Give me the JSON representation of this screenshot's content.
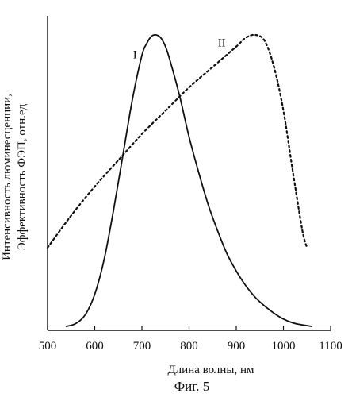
{
  "chart_data": {
    "type": "line",
    "xlabel": "Длина волны, нм",
    "ylabel_line1": "Интенсивность люминесценции,",
    "ylabel_line2": "Эффективность ФЭП, отн.ед",
    "caption": "Фиг. 5",
    "xlim": [
      500,
      1100
    ],
    "ylim": [
      0,
      1
    ],
    "x_ticks": [
      500,
      600,
      700,
      800,
      900,
      1000,
      1100
    ],
    "grid": false,
    "series": [
      {
        "name": "I",
        "style": "solid",
        "color": "#111111",
        "x": [
          540,
          560,
          580,
          600,
          620,
          640,
          660,
          680,
          700,
          710,
          720,
          730,
          740,
          750,
          760,
          780,
          800,
          820,
          840,
          860,
          880,
          900,
          920,
          940,
          960,
          980,
          1000,
          1020,
          1040,
          1060
        ],
        "y": [
          0.0,
          0.01,
          0.04,
          0.11,
          0.23,
          0.4,
          0.59,
          0.78,
          0.93,
          0.97,
          0.995,
          1.0,
          0.99,
          0.96,
          0.91,
          0.79,
          0.65,
          0.53,
          0.42,
          0.33,
          0.25,
          0.19,
          0.14,
          0.1,
          0.07,
          0.045,
          0.025,
          0.012,
          0.005,
          0.0
        ]
      },
      {
        "name": "II",
        "style": "dotted",
        "color": "#111111",
        "x": [
          500,
          550,
          600,
          650,
          700,
          750,
          800,
          850,
          900,
          920,
          940,
          960,
          980,
          1000,
          1020,
          1040,
          1050
        ],
        "y": [
          0.27,
          0.38,
          0.48,
          0.57,
          0.66,
          0.74,
          0.82,
          0.89,
          0.96,
          0.99,
          1.0,
          0.98,
          0.89,
          0.74,
          0.53,
          0.33,
          0.27
        ]
      }
    ],
    "annotations": [
      {
        "text": "I",
        "x": 697,
        "y": 0.92
      },
      {
        "text": "II",
        "x": 881,
        "y": 0.96
      }
    ]
  }
}
